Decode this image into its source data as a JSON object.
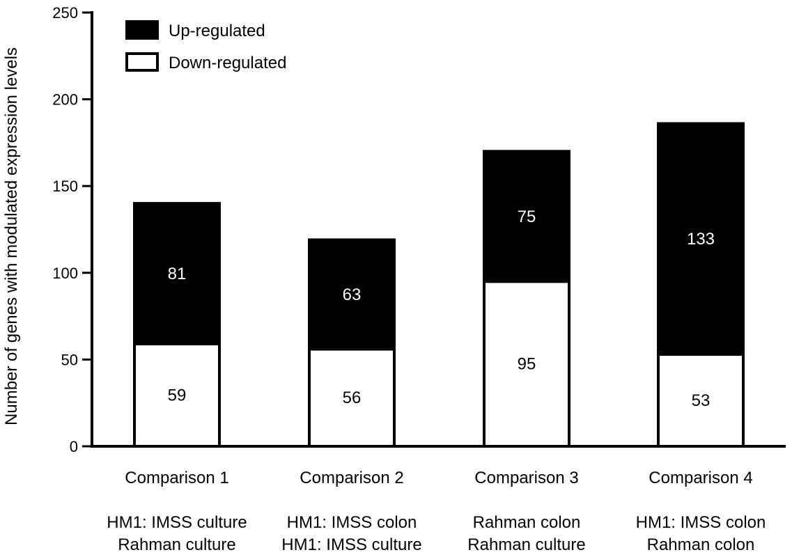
{
  "chart_data": {
    "type": "bar",
    "stacked": true,
    "title": "",
    "xlabel": "",
    "ylabel": "Number of genes with modulated expression levels",
    "ylim": [
      0,
      250
    ],
    "yticks": [
      0,
      50,
      100,
      150,
      200,
      250
    ],
    "grid": false,
    "legend_position": "top-left",
    "categories": [
      "Comparison 1",
      "Comparison 2",
      "Comparison 3",
      "Comparison 4"
    ],
    "subtitles": [
      [
        "HM1: IMSS culture",
        "Rahman culture"
      ],
      [
        "HM1: IMSS colon",
        "HM1: IMSS culture"
      ],
      [
        "Rahman colon",
        "Rahman culture"
      ],
      [
        "HM1: IMSS colon",
        "Rahman colon"
      ]
    ],
    "series": [
      {
        "name": "Down-regulated",
        "values": [
          59,
          56,
          95,
          53
        ],
        "color": "#ffffff"
      },
      {
        "name": "Up-regulated",
        "values": [
          81,
          63,
          75,
          133
        ],
        "color": "#000000"
      }
    ],
    "legend": [
      "Up-regulated",
      "Down-regulated"
    ]
  }
}
